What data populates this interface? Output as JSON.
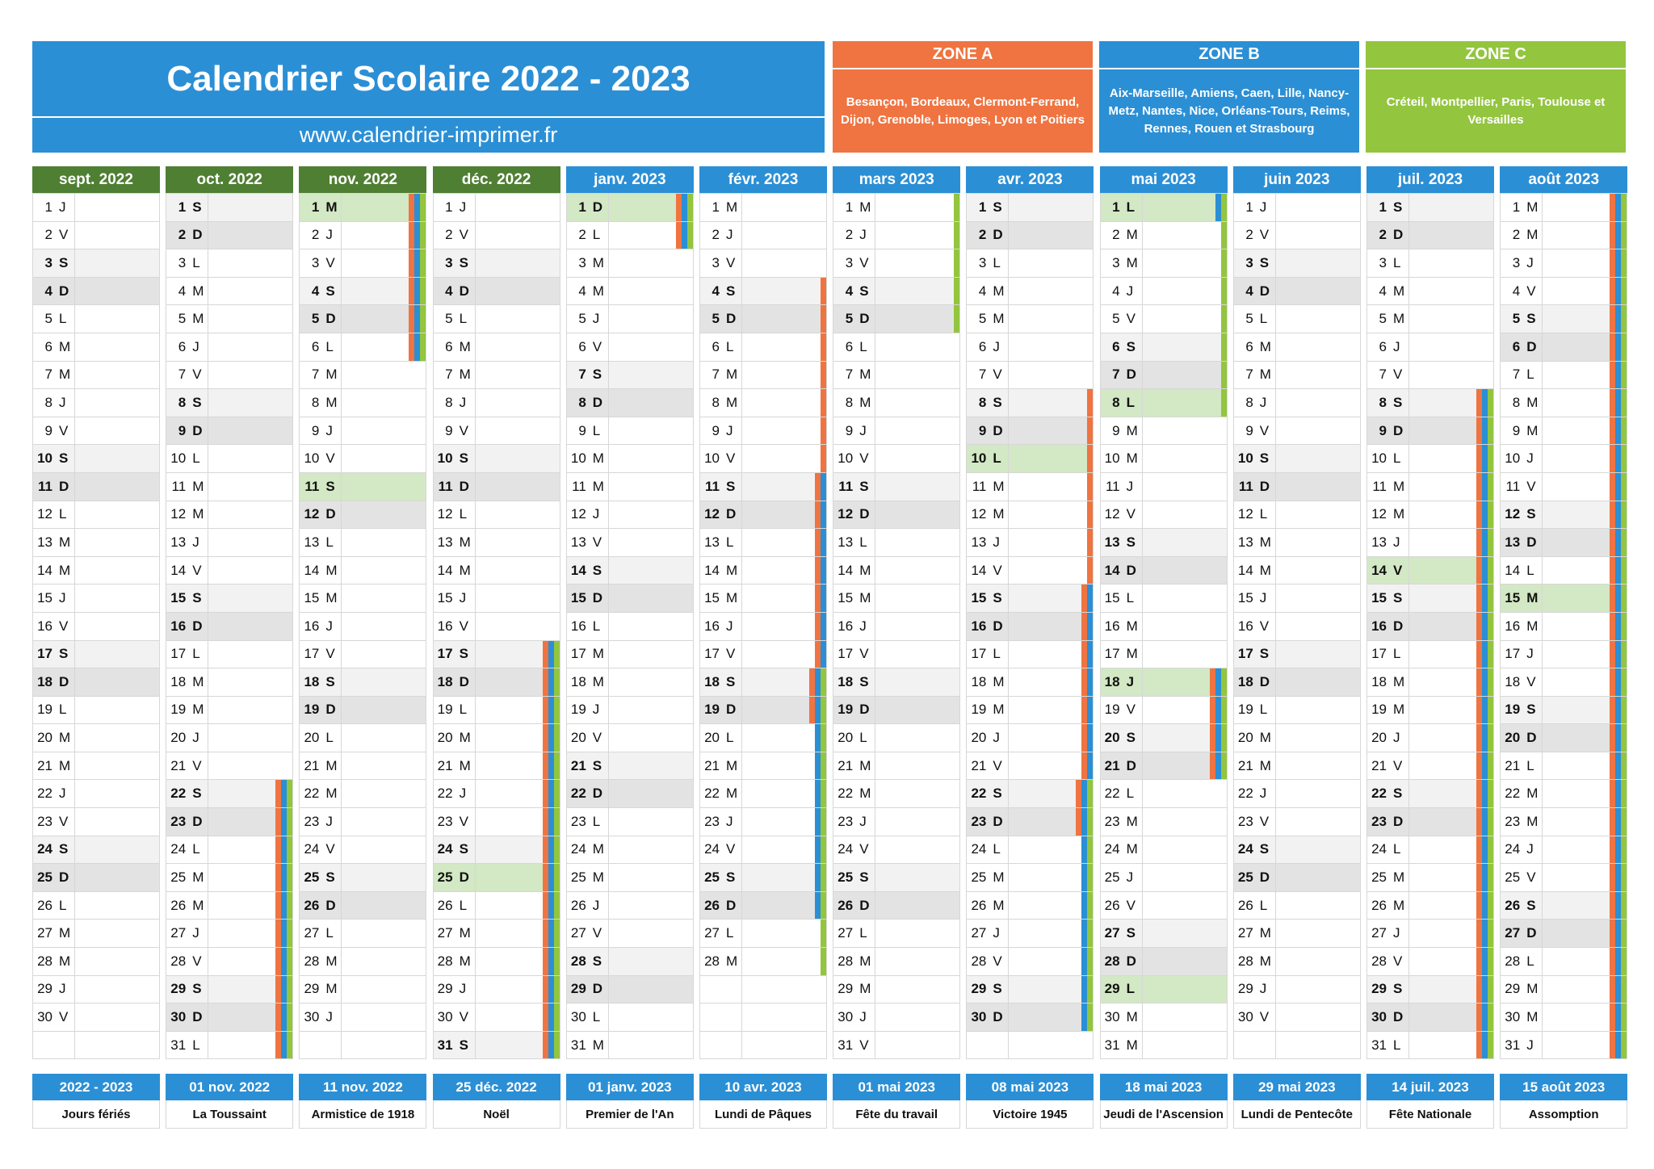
{
  "header": {
    "title": "Calendrier Scolaire 2022 - 2023",
    "url": "www.calendrier-imprimer.fr"
  },
  "zones": [
    {
      "key": "a",
      "title": "ZONE A",
      "cities": "Besançon, Bordeaux, Clermont-Ferrand, Dijon, Grenoble, Limoges, Lyon et Poitiers",
      "color": "#ef7441"
    },
    {
      "key": "b",
      "title": "ZONE B",
      "cities": "Aix-Marseille, Amiens, Caen, Lille, Nancy-Metz, Nantes, Nice, Orléans-Tours, Reims, Rennes, Rouen et Strasbourg",
      "color": "#2b8fd5"
    },
    {
      "key": "c",
      "title": "ZONE C",
      "cities": "Créteil, Montpellier, Paris, Toulouse et Versailles",
      "color": "#93c53f"
    }
  ],
  "months": [
    {
      "label": "sept. 2022",
      "color": "#4f7f33",
      "days": 30,
      "start": "J",
      "holidays": [],
      "vacations": []
    },
    {
      "label": "oct. 2022",
      "color": "#4f7f33",
      "days": 31,
      "start": "S",
      "holidays": [],
      "vacations": [
        {
          "zones": [
            "a",
            "b",
            "c"
          ],
          "from": 22,
          "to": 31
        }
      ]
    },
    {
      "label": "nov. 2022",
      "color": "#4f7f33",
      "days": 30,
      "start": "M",
      "holidays": [
        1,
        11
      ],
      "vacations": [
        {
          "zones": [
            "a",
            "b",
            "c"
          ],
          "from": 1,
          "to": 6
        }
      ]
    },
    {
      "label": "déc. 2022",
      "color": "#4f7f33",
      "days": 31,
      "start": "J",
      "holidays": [
        25
      ],
      "vacations": [
        {
          "zones": [
            "a",
            "b",
            "c"
          ],
          "from": 17,
          "to": 31
        }
      ]
    },
    {
      "label": "janv. 2023",
      "color": "#2b8fd5",
      "days": 31,
      "start": "D",
      "holidays": [
        1
      ],
      "vacations": [
        {
          "zones": [
            "a",
            "b",
            "c"
          ],
          "from": 1,
          "to": 2
        }
      ]
    },
    {
      "label": "févr. 2023",
      "color": "#2b8fd5",
      "days": 28,
      "start": "M",
      "holidays": [],
      "vacations": [
        {
          "zones": [
            "a"
          ],
          "from": 4,
          "to": 19
        },
        {
          "zones": [
            "b"
          ],
          "from": 11,
          "to": 26
        },
        {
          "zones": [
            "c"
          ],
          "from": 18,
          "to": 28
        }
      ]
    },
    {
      "label": "mars 2023",
      "color": "#2b8fd5",
      "days": 31,
      "start": "M",
      "holidays": [],
      "vacations": [
        {
          "zones": [
            "c"
          ],
          "from": 1,
          "to": 5
        }
      ]
    },
    {
      "label": "avr. 2023",
      "color": "#2b8fd5",
      "days": 30,
      "start": "S",
      "holidays": [
        10
      ],
      "vacations": [
        {
          "zones": [
            "a"
          ],
          "from": 8,
          "to": 23
        },
        {
          "zones": [
            "b"
          ],
          "from": 15,
          "to": 30
        },
        {
          "zones": [
            "c"
          ],
          "from": 22,
          "to": 30
        }
      ]
    },
    {
      "label": "mai 2023",
      "color": "#2b8fd5",
      "days": 31,
      "start": "L",
      "holidays": [
        1,
        8,
        18,
        29
      ],
      "vacations": [
        {
          "zones": [
            "b"
          ],
          "from": 1,
          "to": 1
        },
        {
          "zones": [
            "c"
          ],
          "from": 1,
          "to": 8
        },
        {
          "zones": [
            "a",
            "b",
            "c"
          ],
          "from": 18,
          "to": 21
        }
      ]
    },
    {
      "label": "juin 2023",
      "color": "#2b8fd5",
      "days": 30,
      "start": "J",
      "holidays": [],
      "vacations": []
    },
    {
      "label": "juil. 2023",
      "color": "#2b8fd5",
      "days": 31,
      "start": "S",
      "holidays": [
        14
      ],
      "vacations": [
        {
          "zones": [
            "a",
            "b",
            "c"
          ],
          "from": 8,
          "to": 31
        }
      ]
    },
    {
      "label": "août 2023",
      "color": "#2b8fd5",
      "days": 31,
      "start": "M",
      "holidays": [
        15
      ],
      "vacations": [
        {
          "zones": [
            "a",
            "b",
            "c"
          ],
          "from": 1,
          "to": 31
        }
      ]
    }
  ],
  "public_holidays": [
    {
      "date": "2022 - 2023",
      "name": "Jours fériés"
    },
    {
      "date": "01 nov. 2022",
      "name": "La Toussaint"
    },
    {
      "date": "11 nov. 2022",
      "name": "Armistice de 1918"
    },
    {
      "date": "25 déc. 2022",
      "name": "Noël"
    },
    {
      "date": "01 janv. 2023",
      "name": "Premier de l'An"
    },
    {
      "date": "10 avr. 2023",
      "name": "Lundi de Pâques"
    },
    {
      "date": "01 mai 2023",
      "name": "Fête du travail"
    },
    {
      "date": "08 mai 2023",
      "name": "Victoire 1945"
    },
    {
      "date": "18 mai 2023",
      "name": "Jeudi de l'Ascension"
    },
    {
      "date": "29 mai 2023",
      "name": "Lundi de Pentecôte"
    },
    {
      "date": "14 juil. 2023",
      "name": "Fête Nationale"
    },
    {
      "date": "15 août 2023",
      "name": "Assomption"
    }
  ]
}
